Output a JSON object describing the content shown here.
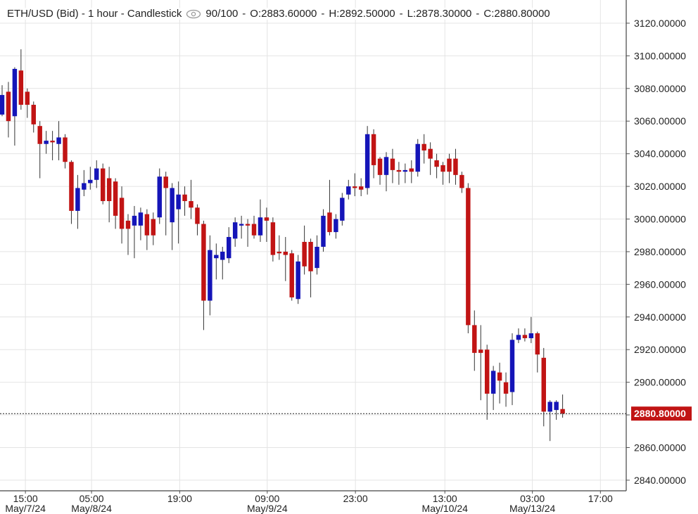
{
  "chart_data": {
    "type": "candlestick",
    "title": "ETH/USD (Bid) - 1 hour - Candlestick",
    "zoom_text": "90/100",
    "header_ohlc": [
      {
        "value": 2883.6,
        "label": "O:2883.60000"
      },
      {
        "value": 2892.5,
        "label": "H:2892.50000"
      },
      {
        "value": 2878.3,
        "label": "L:2878.30000"
      },
      {
        "value": 2880.8,
        "label": "C:2880.80000"
      }
    ],
    "last_price": {
      "value": 2880.8,
      "label": "2880.80000"
    },
    "up_color": "#1515b8",
    "down_color": "#c11414",
    "last_price_color": "#c11414",
    "grid": true,
    "xlim": [
      -0.335,
      99.1
    ],
    "ylim": [
      2833.5,
      3134.2
    ],
    "xticks": [
      {
        "value": 3.7,
        "label": "15:00",
        "date": "May/7/24"
      },
      {
        "value": 14.2,
        "label": "05:00",
        "date": "May/8/24"
      },
      {
        "value": 28.2,
        "label": "19:00"
      },
      {
        "value": 42.1,
        "label": "09:00",
        "date": "May/9/24"
      },
      {
        "value": 56.1,
        "label": "23:00"
      },
      {
        "value": 70.3,
        "label": "13:00",
        "date": "May/10/24"
      },
      {
        "value": 84.2,
        "label": "03:00",
        "date": "May/13/24"
      },
      {
        "value": 95.0,
        "label": "17:00"
      }
    ],
    "yticks": [
      {
        "value": 3120,
        "label": "3120.00000"
      },
      {
        "value": 3100,
        "label": "3100.00000"
      },
      {
        "value": 3080,
        "label": "3080.00000"
      },
      {
        "value": 3060,
        "label": "3060.00000"
      },
      {
        "value": 3040,
        "label": "3040.00000"
      },
      {
        "value": 3020,
        "label": "3020.00000"
      },
      {
        "value": 3000,
        "label": "3000.00000"
      },
      {
        "value": 2980,
        "label": "2980.00000"
      },
      {
        "value": 2960,
        "label": "2960.00000"
      },
      {
        "value": 2940,
        "label": "2940.00000"
      },
      {
        "value": 2920,
        "label": "2920.00000"
      },
      {
        "value": 2900,
        "label": "2900.00000"
      },
      {
        "value": 2880,
        "label": "2880.00000"
      },
      {
        "value": 2860,
        "label": "2860.00000"
      },
      {
        "value": 2840,
        "label": "2840.00000"
      }
    ],
    "open": [
      3064,
      3078,
      3063,
      3091,
      3078,
      3070,
      3057,
      3046,
      3048,
      3046,
      3050,
      3035,
      3005,
      3018,
      3022,
      3024,
      3031,
      3025,
      3023,
      3013,
      2999,
      2996,
      2996,
      3003,
      3000,
      3001,
      3026,
      2998,
      3006,
      3015,
      3011,
      3007,
      2997,
      2950,
      2976,
      2975,
      2976,
      2988,
      2996,
      2997,
      2997,
      2990,
      3001,
      2998,
      2980,
      2980,
      2979,
      2951,
      2986,
      2986,
      2970,
      2983,
      3004,
      2992,
      2999,
      3015,
      3020,
      3020,
      3019,
      3052,
      3037,
      3027,
      3037,
      3030,
      3029,
      3031,
      3029,
      3046,
      3043,
      3036,
      3033,
      3037,
      3037,
      3027,
      3019,
      2935,
      2920,
      2920,
      2893,
      2906,
      2900,
      2894,
      2926,
      2929,
      2927,
      2930,
      2915,
      2882,
      2883,
      2883.6
    ],
    "high": [
      3082,
      3084,
      3093,
      3104,
      3080,
      3072,
      3060,
      3054,
      3054,
      3060,
      3052,
      3036,
      3027,
      3030,
      3032,
      3036,
      3034,
      3032,
      3025,
      3020,
      3003,
      3008,
      3007,
      3006,
      3004,
      3031,
      3029,
      3022,
      3023,
      3020,
      3024,
      3009,
      2999,
      2990,
      2985,
      2983,
      2995,
      3001,
      3002,
      3000,
      3002,
      3012,
      3007,
      3001,
      2990,
      2989,
      2981,
      2978,
      2996,
      2988,
      2990,
      3006,
      3024,
      3003,
      3016,
      3024,
      3028,
      3025,
      3057,
      3055,
      3038,
      3041,
      3043,
      3035,
      3034,
      3036,
      3049,
      3052,
      3047,
      3040,
      3035,
      3040,
      3043,
      3029,
      3022,
      2944,
      2935,
      2923,
      2910,
      2912,
      2906,
      2930,
      2933,
      2933,
      2940,
      2931,
      2921,
      2889,
      2889,
      2892.5
    ],
    "low": [
      3063,
      3050,
      3045,
      3067,
      3062,
      3053,
      3025,
      3040,
      3036,
      3036,
      3031,
      2997,
      2994,
      3014,
      3018,
      3019,
      3009,
      2998,
      2994,
      2985,
      2978,
      2976,
      2987,
      2981,
      2984,
      2997,
      2990,
      2981,
      2985,
      3002,
      3000,
      2990,
      2932,
      2941,
      2963,
      2963,
      2973,
      2983,
      2988,
      2983,
      2988,
      2986,
      2986,
      2974,
      2975,
      2962,
      2950,
      2948,
      2966,
      2952,
      2966,
      2980,
      2990,
      2988,
      2996,
      3012,
      3014,
      3014,
      3015,
      3025,
      3021,
      3017,
      3022,
      3021,
      3022,
      3022,
      3026,
      3034,
      3027,
      3025,
      3021,
      3022,
      3021,
      3016,
      2930,
      2907,
      2889,
      2877,
      2883,
      2887,
      2885,
      2886,
      2924,
      2925,
      2924,
      2906,
      2873,
      2864,
      2877,
      2878.3
    ],
    "close": [
      3076,
      3060,
      3092,
      3070,
      3070,
      3058,
      3046,
      3048,
      3047,
      3050,
      3035,
      3005,
      3019,
      3022,
      3024,
      3031,
      3011,
      3011,
      3002,
      2994,
      2994,
      3002,
      3004,
      2990,
      2990,
      3026,
      3019,
      3019,
      3015,
      3011,
      3007,
      2997,
      2950,
      2981,
      2978,
      2980,
      2989,
      2998,
      2997,
      2996,
      2990,
      3001,
      2999,
      2978,
      2979,
      2978,
      2952,
      2974,
      2971,
      2968,
      2983,
      3002,
      2992,
      3000,
      3013,
      3020,
      3019,
      3018,
      3052,
      3033,
      3027,
      3038,
      3030,
      3029,
      3030,
      3029,
      3046,
      3042,
      3037,
      3032,
      3029,
      3029,
      3027,
      3019,
      2935,
      2918,
      2918,
      2893,
      2907,
      2901,
      2893,
      2926,
      2929,
      2927,
      2930,
      2917,
      2882,
      2888,
      2888,
      2880.8
    ]
  }
}
